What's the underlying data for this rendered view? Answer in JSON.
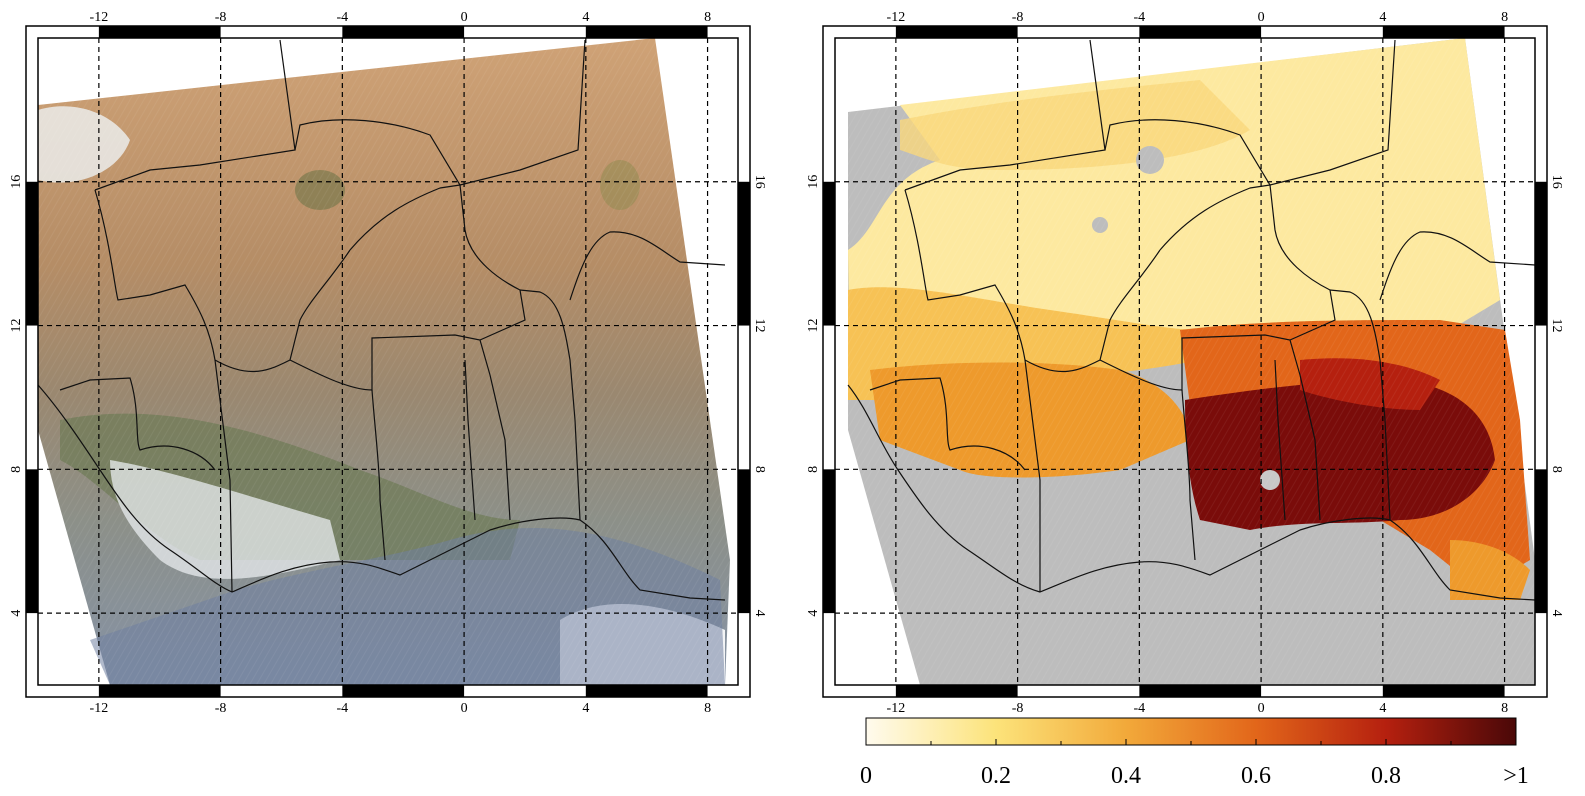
{
  "maps": [
    {
      "id": "true-color",
      "lon_range": [
        -14,
        9
      ],
      "lat_range": [
        2,
        20
      ],
      "lon_ticks": [
        "-12",
        "-8",
        "-4",
        "0",
        "4",
        "8"
      ],
      "lat_ticks": [
        "4",
        "8",
        "12",
        "16"
      ],
      "swath_fill": "true-color satellite imagery",
      "colors": {
        "land_north": "#c89c72",
        "land_mid": "#a28868",
        "vegetation": "#6e7a56",
        "cloud": "#e8ecef",
        "ocean": "#7b8aa3"
      }
    },
    {
      "id": "aod",
      "lon_range": [
        -14,
        9
      ],
      "lat_range": [
        2,
        20
      ],
      "lon_ticks": [
        "-12",
        "-8",
        "-4",
        "0",
        "4",
        "8"
      ],
      "lat_ticks": [
        "4",
        "8",
        "12",
        "16"
      ],
      "no_data_color": "#bdbdbd"
    }
  ],
  "colorbar": {
    "tick_labels": [
      "0",
      "0.2",
      "0.4",
      "0.6",
      "0.8",
      ">1"
    ],
    "tick_values": [
      0,
      0.2,
      0.4,
      0.6,
      0.8,
      1.0
    ],
    "range": [
      0,
      1
    ],
    "colors": [
      "#fffbee",
      "#fce37a",
      "#f2a93a",
      "#e2661a",
      "#b5200f",
      "#4a0808"
    ]
  }
}
